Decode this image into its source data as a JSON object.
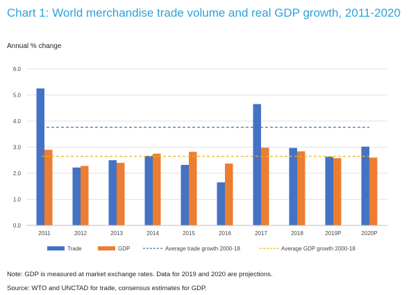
{
  "header": {
    "title": "Chart 1: World merchandise trade volume and real GDP growth, 2011-2020",
    "subtitle": "Annual % change"
  },
  "footer": {
    "note": "Note: GDP is measured at market exchange rates. Data for 2019 and 2020 are projections.",
    "source": "Source: WTO and UNCTAD for trade, consensus estimates for GDP."
  },
  "colors": {
    "trade": "#4472c4",
    "gdp": "#ed7d31",
    "trade_avg": "#2e75b6",
    "gdp_avg": "#f0b323",
    "grid": "#d9d9d9",
    "title": "#29a3dd"
  },
  "chart_data": {
    "type": "bar",
    "title": "Chart 1: World merchandise trade volume and real GDP growth, 2011-2020",
    "ylabel": "Annual % change",
    "xlabel": "",
    "categories": [
      "2011",
      "2012",
      "2013",
      "2014",
      "2015",
      "2016",
      "2017",
      "2018",
      "2019P",
      "2020P"
    ],
    "series": [
      {
        "name": "Trade",
        "values": [
          5.25,
          2.22,
          2.5,
          2.67,
          2.32,
          1.65,
          4.65,
          2.97,
          2.63,
          3.02
        ]
      },
      {
        "name": "GDP",
        "values": [
          2.9,
          2.28,
          2.4,
          2.75,
          2.82,
          2.37,
          2.98,
          2.84,
          2.58,
          2.6
        ]
      }
    ],
    "reference_lines": [
      {
        "name": "Average trade growth 2000-18",
        "value": 3.76,
        "style": "dashed"
      },
      {
        "name": "Average GDP growth 2000-18",
        "value": 2.65,
        "style": "dashed"
      }
    ],
    "ylim": [
      0,
      6
    ],
    "yticks": [
      "0.0",
      "1.0",
      "2.0",
      "3.0",
      "4.0",
      "5.0",
      "6.0"
    ],
    "grid": true,
    "legend_position": "bottom"
  }
}
